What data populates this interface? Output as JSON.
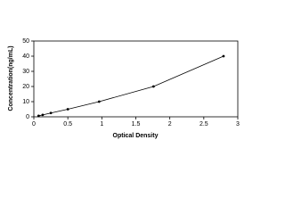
{
  "chart_data": {
    "type": "scatter",
    "x_label": "Optical Density",
    "y_label": "Concentration(ng/mL)",
    "series": [
      {
        "color": "#000000",
        "x": [
          0.07,
          0.13,
          0.25,
          0.5,
          0.96,
          1.76,
          2.79
        ],
        "values": [
          0.625,
          1.25,
          2.5,
          5,
          10,
          20,
          40
        ]
      }
    ],
    "xlim": [
      0,
      3
    ],
    "xticks": [
      0,
      0.5,
      1,
      1.5,
      2,
      2.5,
      3
    ],
    "ylim": [
      0,
      50
    ],
    "yticks": [
      0,
      10,
      20,
      30,
      40,
      50
    ],
    "grid": false
  }
}
